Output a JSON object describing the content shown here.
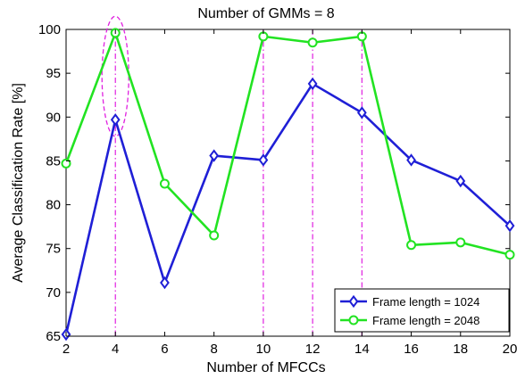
{
  "chart_data": {
    "type": "line",
    "title": "Number of GMMs = 8",
    "xlabel": "Number of MFCCs",
    "ylabel": "Average Classification Rate [%]",
    "x": [
      2,
      4,
      6,
      8,
      10,
      12,
      14,
      16,
      18,
      20
    ],
    "xlim": [
      2,
      20
    ],
    "ylim": [
      65,
      100
    ],
    "xticks": [
      "2",
      "4",
      "6",
      "8",
      "10",
      "12",
      "14",
      "16",
      "18",
      "20"
    ],
    "yticks": [
      "65",
      "70",
      "75",
      "80",
      "85",
      "90",
      "95",
      "100"
    ],
    "grid": false,
    "legend_position": "bottom-right",
    "series": [
      {
        "name": "Frame length = 1024",
        "color": "#1f1fd6",
        "marker": "diamond",
        "values": [
          65.2,
          89.7,
          71.1,
          85.6,
          85.1,
          93.8,
          90.5,
          85.1,
          82.7,
          77.6
        ]
      },
      {
        "name": "Frame length = 2048",
        "color": "#22e322",
        "marker": "circle",
        "values": [
          84.7,
          99.6,
          82.4,
          76.5,
          99.2,
          98.5,
          99.2,
          75.4,
          75.7,
          74.3
        ]
      }
    ],
    "annotations": {
      "vertical_lines_x": [
        4,
        10,
        12,
        14
      ],
      "ellipse": {
        "x": 4,
        "y_range": [
          87.8,
          101.5
        ]
      },
      "annotation_color": "#e020e0"
    }
  }
}
